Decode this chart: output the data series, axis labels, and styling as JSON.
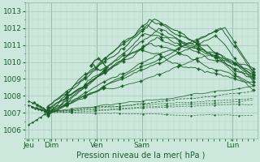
{
  "background_color": "#cce8dc",
  "plot_bg_color": "#cce8dc",
  "grid_color_major": "#a8c8bc",
  "grid_color_minor": "#b8d8cc",
  "line_color": "#1a5c28",
  "ylim": [
    1005.5,
    1013.5
  ],
  "yticks": [
    1006,
    1007,
    1008,
    1009,
    1010,
    1011,
    1012,
    1013
  ],
  "xlabel": "Pression niveau de la mer( hPa )",
  "xlabel_color": "#1a5c28",
  "tick_color": "#1a5c28",
  "day_labels": [
    "Jeu",
    "Dim",
    "Ven",
    "Sam",
    "Lun"
  ],
  "day_positions": [
    2,
    26,
    74,
    122,
    218
  ],
  "xlim": [
    -2,
    244
  ],
  "figsize": [
    3.2,
    2.0
  ],
  "dpi": 100
}
